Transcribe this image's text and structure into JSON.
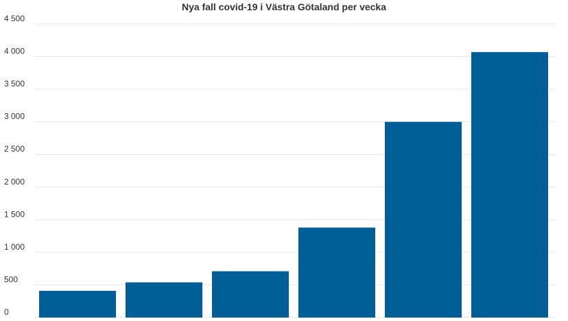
{
  "chart_data": {
    "type": "bar",
    "title": "Nya fall covid-19 i Västra Götaland per vecka",
    "xlabel": "",
    "ylabel": "",
    "categories": [
      "",
      "",
      "",
      "",
      "",
      ""
    ],
    "values": [
      410,
      540,
      710,
      1380,
      3000,
      4070
    ],
    "ylim": [
      0,
      4500
    ],
    "y_ticks": [
      0,
      500,
      1000,
      1500,
      2000,
      2500,
      3000,
      3500,
      4000,
      4500
    ],
    "y_tick_labels": [
      "0",
      "500",
      "1 000",
      "1 500",
      "2 000",
      "2 500",
      "3 000",
      "3 500",
      "4 000",
      "4 500"
    ],
    "grid": true,
    "bar_color": "#005f96"
  }
}
